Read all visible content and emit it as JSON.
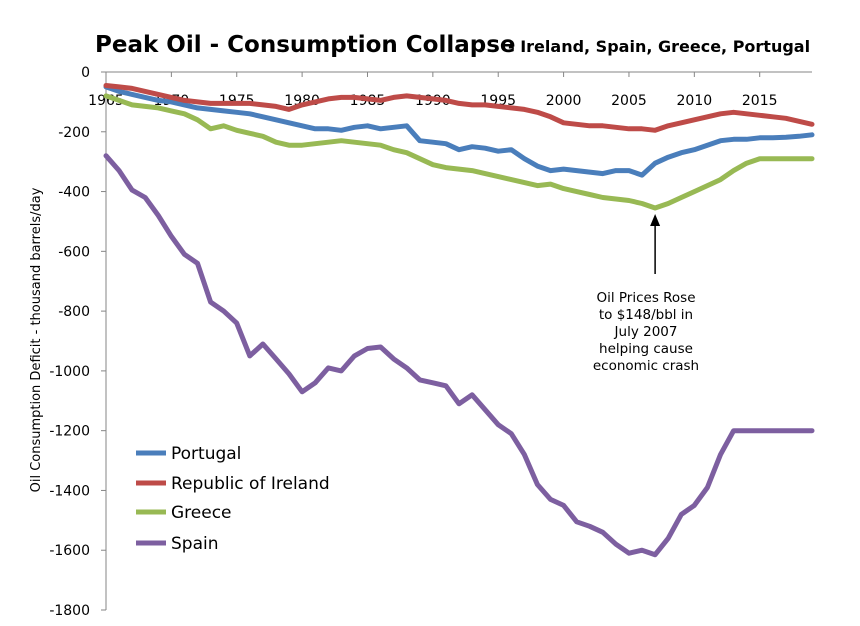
{
  "chart_data": {
    "type": "line",
    "title": "Peak Oil -  Consumption Collapse",
    "subtitle": "- Ireland, Spain, Greece, Portugal",
    "ylabel": "Oil  Consumption Deficit - thousand   barrels/day",
    "xlabel": "",
    "xlim": [
      1965,
      2019
    ],
    "ylim": [
      -1800,
      0
    ],
    "x_ticks": [
      "1965",
      "1970",
      "1975",
      "1980",
      "1985",
      "1990",
      "1995",
      "2000",
      "2005",
      "2010",
      "2015"
    ],
    "y_ticks": [
      "0",
      "-200",
      "-400",
      "-600",
      "-800",
      "-1000",
      "-1200",
      "-1400",
      "-1600",
      "-1800"
    ],
    "grid": false,
    "legend_position": "bottom-left",
    "x": [
      1965,
      1966,
      1967,
      1968,
      1969,
      1970,
      1971,
      1972,
      1973,
      1974,
      1975,
      1976,
      1977,
      1978,
      1979,
      1980,
      1981,
      1982,
      1983,
      1984,
      1985,
      1986,
      1987,
      1988,
      1989,
      1990,
      1991,
      1992,
      1993,
      1994,
      1995,
      1996,
      1997,
      1998,
      1999,
      2000,
      2001,
      2002,
      2003,
      2004,
      2005,
      2006,
      2007,
      2008,
      2009,
      2010,
      2011,
      2012,
      2013,
      2014,
      2015,
      2016,
      2017,
      2018,
      2019
    ],
    "series": [
      {
        "name": "Portugal",
        "color": "#4a7ebb",
        "values": [
          -50,
          -65,
          -75,
          -85,
          -95,
          -100,
          -110,
          -120,
          -125,
          -130,
          -135,
          -140,
          -150,
          -160,
          -170,
          -180,
          -190,
          -190,
          -195,
          -185,
          -180,
          -190,
          -185,
          -180,
          -230,
          -235,
          -240,
          -260,
          -250,
          -255,
          -265,
          -260,
          -290,
          -315,
          -330,
          -325,
          -330,
          -335,
          -340,
          -330,
          -330,
          -345,
          -305,
          -285,
          -270,
          -260,
          -245,
          -230,
          -225,
          -225,
          -220,
          -220,
          -218,
          -215,
          -210
        ]
      },
      {
        "name": "Republic of Ireland",
        "color": "#be4b48",
        "values": [
          -45,
          -50,
          -55,
          -65,
          -75,
          -85,
          -95,
          -100,
          -105,
          -105,
          -105,
          -105,
          -110,
          -115,
          -125,
          -110,
          -100,
          -90,
          -85,
          -85,
          -90,
          -95,
          -85,
          -80,
          -85,
          -90,
          -95,
          -105,
          -110,
          -110,
          -115,
          -120,
          -125,
          -135,
          -150,
          -170,
          -175,
          -180,
          -180,
          -185,
          -190,
          -190,
          -195,
          -180,
          -170,
          -160,
          -150,
          -140,
          -135,
          -140,
          -145,
          -150,
          -155,
          -165,
          -175
        ]
      },
      {
        "name": "Greece",
        "color": "#98b954",
        "values": [
          -80,
          -95,
          -110,
          -115,
          -120,
          -130,
          -140,
          -160,
          -190,
          -180,
          -195,
          -205,
          -215,
          -235,
          -245,
          -245,
          -240,
          -235,
          -230,
          -235,
          -240,
          -245,
          -260,
          -270,
          -290,
          -310,
          -320,
          -325,
          -330,
          -340,
          -350,
          -360,
          -370,
          -380,
          -375,
          -390,
          -400,
          -410,
          -420,
          -425,
          -430,
          -440,
          -455,
          -440,
          -420,
          -400,
          -380,
          -360,
          -330,
          -305,
          -290,
          -290,
          -290,
          -290,
          -290
        ]
      },
      {
        "name": "Spain",
        "color": "#7d5fa0",
        "values": [
          -280,
          -330,
          -395,
          -420,
          -480,
          -550,
          -610,
          -640,
          -770,
          -800,
          -840,
          -950,
          -910,
          -960,
          -1010,
          -1070,
          -1040,
          -990,
          -1000,
          -950,
          -925,
          -920,
          -960,
          -990,
          -1030,
          -1040,
          -1050,
          -1110,
          -1080,
          -1130,
          -1180,
          -1210,
          -1280,
          -1380,
          -1430,
          -1450,
          -1505,
          -1520,
          -1540,
          -1580,
          -1610,
          -1600,
          -1615,
          -1560,
          -1480,
          -1450,
          -1390,
          -1280,
          -1200,
          -1200,
          -1200,
          -1200,
          -1200,
          -1200,
          -1200
        ]
      }
    ],
    "annotation": {
      "lines": [
        "Oil Prices Rose",
        "to $148/bbl in",
        "July 2007",
        "helping cause",
        "economic crash"
      ],
      "target_x": 2007,
      "target_y": -455
    }
  }
}
